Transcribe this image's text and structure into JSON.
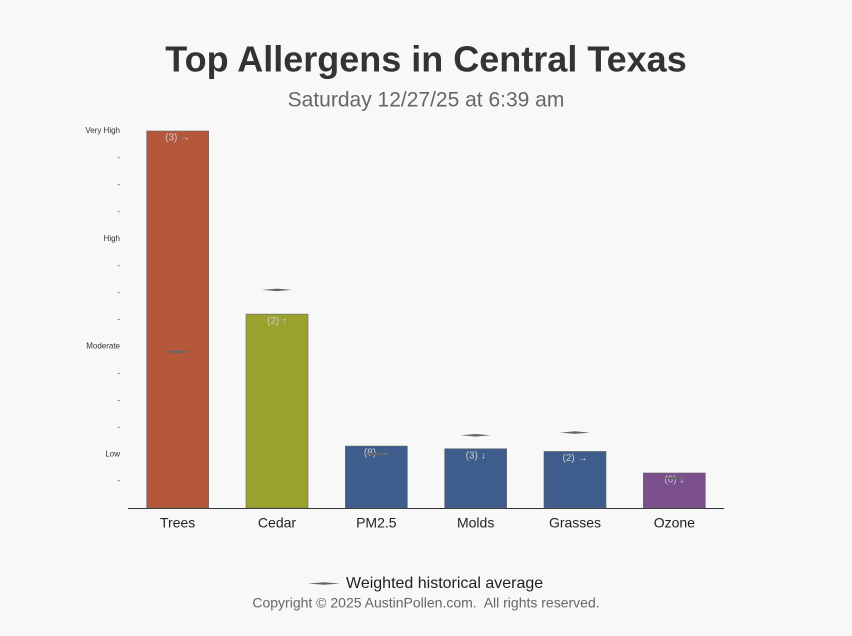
{
  "chart_data": {
    "type": "bar",
    "title": "Top Allergens in Central Texas",
    "subtitle": "Saturday 12/27/25 at 6:39 am",
    "categories": [
      "Trees",
      "Cedar",
      "PM2.5",
      "Molds",
      "Grasses",
      "Ozone"
    ],
    "series": [
      {
        "values": [
          14,
          7.2,
          2.3,
          2.2,
          2.1,
          1.3
        ],
        "colors": [
          "#b5573a",
          "#9aa22d",
          "#3e5d8c",
          "#3e5d8c",
          "#3e5d8c",
          "#7b4f8c"
        ]
      },
      {
        "name": "Weighted historical average",
        "color": "#666666",
        "values": [
          5.8,
          8.1,
          2.0,
          2.7,
          2.8,
          1.1
        ]
      }
    ],
    "annotations": [
      "(3) →",
      "(2) ↑",
      "(8) →",
      "(3) ↓",
      "(2) →",
      "(6) ↓"
    ],
    "ylim": [
      0,
      14
    ],
    "yticks": [
      {
        "value": 1,
        "label": "-"
      },
      {
        "value": 2,
        "label": "Low"
      },
      {
        "value": 3,
        "label": "-"
      },
      {
        "value": 4,
        "label": "-"
      },
      {
        "value": 5,
        "label": "-"
      },
      {
        "value": 6,
        "label": "Moderate"
      },
      {
        "value": 7,
        "label": "-"
      },
      {
        "value": 8,
        "label": "-"
      },
      {
        "value": 9,
        "label": "-"
      },
      {
        "value": 10,
        "label": "High"
      },
      {
        "value": 11,
        "label": "-"
      },
      {
        "value": 12,
        "label": "-"
      },
      {
        "value": 13,
        "label": "-"
      },
      {
        "value": 14,
        "label": "Very High"
      }
    ],
    "copyright": "Copyright © 2025 AustinPollen.com.  All rights reserved."
  }
}
